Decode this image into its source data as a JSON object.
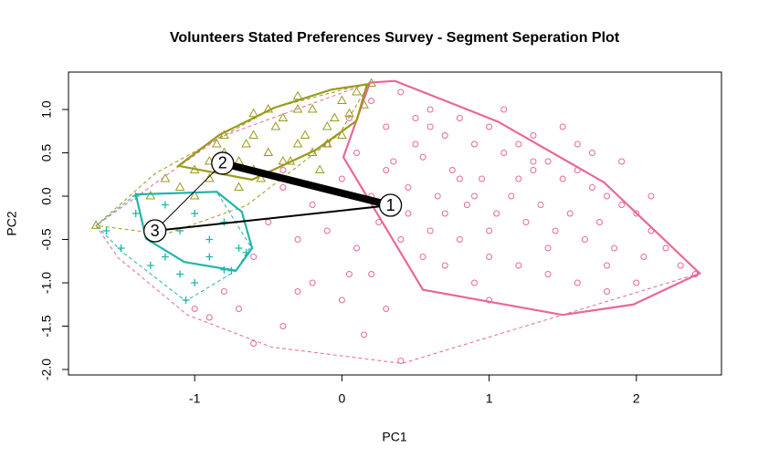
{
  "chart_data": {
    "type": "scatter",
    "title": "Volunteers Stated Preferences Survey - Segment Seperation Plot",
    "x_label": "PC1",
    "y_label": "PC2",
    "xlim": [
      -1.857,
      2.578
    ],
    "ylim": [
      -2.063,
      1.432
    ],
    "xticks": [
      -1,
      0,
      1,
      2
    ],
    "yticks": [
      {
        "value": -2,
        "label": "-2.0"
      },
      -1.5,
      {
        "value": -1,
        "label": "-1.0"
      },
      -0.5,
      {
        "value": 0,
        "label": "0.0"
      },
      0.5,
      {
        "value": 1,
        "label": "1.0"
      }
    ],
    "series": [
      {
        "name": "1",
        "color": "#e8679b",
        "marker": "circle",
        "x": [
          0.2,
          0.4,
          0.6,
          0.8,
          1.0,
          1.2,
          1.4,
          1.6,
          1.8,
          2.0,
          0.3,
          0.5,
          0.7,
          0.9,
          1.1,
          1.3,
          1.5,
          1.7,
          1.9,
          2.1,
          0.1,
          0.35,
          0.55,
          0.75,
          0.95,
          1.15,
          1.35,
          1.55,
          1.75,
          2.2,
          0.45,
          0.65,
          0.85,
          1.05,
          1.25,
          1.45,
          1.65,
          1.85,
          2.05,
          2.3,
          0.6,
          0.8,
          1.0,
          1.2,
          1.4,
          1.6,
          1.8,
          2.0,
          0.7,
          0.9,
          0.0,
          -0.2,
          -0.4,
          -0.1,
          0.1,
          -0.3,
          -0.5,
          0.2,
          -0.6,
          -0.8,
          -0.2,
          -0.7,
          -0.4,
          -0.9,
          0.0,
          0.3,
          -1.0,
          -0.6,
          -0.3,
          0.15,
          1.1,
          1.3,
          1.5,
          1.7,
          1.9,
          2.1,
          0.5,
          0.7,
          0.9,
          1.2,
          0.25,
          0.4,
          0.55,
          0.2,
          0.45,
          0.3,
          0.05,
          1.0,
          1.4,
          1.8,
          2.4,
          1.6,
          1.3,
          0.8,
          0.6,
          -0.1,
          -0.4,
          0.4,
          1.0,
          0.05
        ],
        "values": [
          1.1,
          1.2,
          1.0,
          0.9,
          0.8,
          0.6,
          0.4,
          0.3,
          0.0,
          -0.2,
          0.8,
          0.9,
          0.7,
          0.6,
          0.5,
          0.3,
          0.2,
          0.1,
          -0.1,
          -0.4,
          0.5,
          0.4,
          0.45,
          0.3,
          0.2,
          0.0,
          -0.1,
          -0.2,
          -0.3,
          -0.6,
          0.1,
          0.0,
          -0.1,
          -0.2,
          -0.3,
          -0.4,
          -0.5,
          -0.6,
          -0.7,
          -0.8,
          -0.4,
          -0.5,
          -0.7,
          -0.8,
          -0.9,
          -1.0,
          -1.1,
          -1.0,
          -0.8,
          -1.0,
          0.2,
          -0.1,
          0.1,
          -0.4,
          -0.6,
          -0.5,
          -0.3,
          -0.9,
          -0.7,
          -1.1,
          -1.0,
          -1.3,
          -1.5,
          -1.4,
          -1.2,
          -1.3,
          -1.3,
          -1.7,
          -1.1,
          -1.6,
          1.0,
          0.7,
          0.8,
          0.5,
          0.4,
          0.0,
          0.6,
          -0.2,
          0.0,
          0.2,
          -0.3,
          -0.5,
          -0.7,
          0.0,
          -0.2,
          0.3,
          0.9,
          -0.4,
          -0.6,
          -0.8,
          -0.9,
          0.6,
          0.4,
          0.2,
          0.8,
          0.6,
          0.3,
          -1.9,
          -1.2,
          -0.9
        ],
        "hull": {
          "x": [
            0.19,
            0.36,
            1.06,
            1.78,
            2.43,
            1.98,
            1.5,
            0.55,
            0.01
          ],
          "y": [
            1.31,
            1.33,
            0.86,
            0.16,
            -0.89,
            -1.25,
            -1.37,
            -1.08,
            0.45
          ]
        },
        "outer_hull": {
          "x": [
            0.19,
            0.36,
            1.06,
            1.78,
            2.43,
            0.41,
            -0.48,
            -1.05,
            -1.52,
            -1.67,
            -0.83
          ],
          "y": [
            1.31,
            1.33,
            0.86,
            0.16,
            -0.89,
            -1.93,
            -1.74,
            -1.37,
            -0.71,
            -0.34,
            0.68
          ]
        },
        "cx": 0.33,
        "cy": -0.105
      },
      {
        "name": "2",
        "color": "#9a9a1c",
        "marker": "triangle",
        "x": [
          -0.8,
          -0.6,
          -0.4,
          -0.2,
          0.0,
          0.1,
          -0.5,
          -0.3,
          -0.1,
          -0.7,
          -1.0,
          -0.9,
          -0.6,
          -0.4,
          -0.2,
          0.0,
          0.2,
          -0.3,
          -0.5,
          -0.8,
          -0.45,
          -0.25,
          -0.05,
          -0.65,
          -0.35,
          -0.15,
          0.05,
          -0.55,
          -1.1,
          -1.3,
          -1.67,
          -1.0,
          -0.7,
          -0.85,
          0.15,
          -0.1,
          -0.3,
          -0.6,
          -0.9,
          -1.2
        ],
        "values": [
          0.5,
          0.7,
          0.9,
          1.0,
          1.1,
          1.2,
          0.5,
          0.6,
          0.8,
          0.4,
          0.3,
          0.2,
          0.3,
          0.4,
          0.5,
          0.7,
          1.3,
          1.0,
          1.0,
          0.7,
          0.8,
          0.7,
          0.9,
          0.6,
          0.4,
          0.3,
          0.95,
          0.2,
          0.1,
          0.0,
          -0.34,
          0.0,
          0.1,
          0.6,
          1.05,
          0.6,
          1.15,
          0.95,
          0.4,
          0.2
        ],
        "hull": {
          "x": [
            0.17,
            0.1,
            -0.18,
            -0.61,
            -1.11,
            -0.83,
            -0.46,
            -0.07
          ],
          "y": [
            1.29,
            0.87,
            0.53,
            0.19,
            0.35,
            0.71,
            1.02,
            1.23
          ]
        },
        "outer_hull": {
          "x": [
            0.19,
            -0.02,
            -0.65,
            -1.2,
            -1.67,
            -1.27,
            -0.46
          ],
          "y": [
            1.31,
            0.71,
            -0.11,
            -0.44,
            -0.34,
            0.26,
            1.02
          ]
        },
        "cx": -0.81,
        "cy": 0.38
      },
      {
        "name": "3",
        "color": "#22b5aa",
        "marker": "plus",
        "x": [
          -1.4,
          -1.2,
          -1.0,
          -0.8,
          -0.7,
          -1.3,
          -1.1,
          -0.9,
          -0.65,
          -1.5,
          -1.3,
          -1.1,
          -1.0,
          -0.8,
          -1.2,
          -0.9,
          -1.06,
          -0.75,
          -1.6,
          -1.4
        ],
        "values": [
          0.0,
          -0.1,
          -0.2,
          -0.3,
          -0.6,
          -0.5,
          -0.4,
          -0.5,
          -0.65,
          -0.6,
          -0.8,
          -0.9,
          -1.0,
          -0.85,
          -0.7,
          -0.7,
          -1.2,
          -0.86,
          -0.4,
          -0.2
        ],
        "hull": {
          "x": [
            -1.4,
            -0.85,
            -0.68,
            -0.61,
            -0.72,
            -1.07,
            -1.33
          ],
          "y": [
            0.02,
            0.05,
            -0.18,
            -0.6,
            -0.86,
            -0.76,
            -0.49
          ]
        },
        "outer_hull": {
          "x": [
            -1.4,
            -0.85,
            -0.62,
            -0.72,
            -1.06,
            -1.48,
            -1.67
          ],
          "y": [
            0.02,
            0.05,
            -0.58,
            -0.86,
            -1.21,
            -0.66,
            -0.34
          ]
        },
        "cx": -1.27,
        "cy": -0.4
      }
    ],
    "edges": [
      {
        "from": 0,
        "to": 1,
        "weight": 8
      },
      {
        "from": 0,
        "to": 2,
        "weight": 2
      },
      {
        "from": 1,
        "to": 2,
        "weight": 1
      }
    ]
  }
}
